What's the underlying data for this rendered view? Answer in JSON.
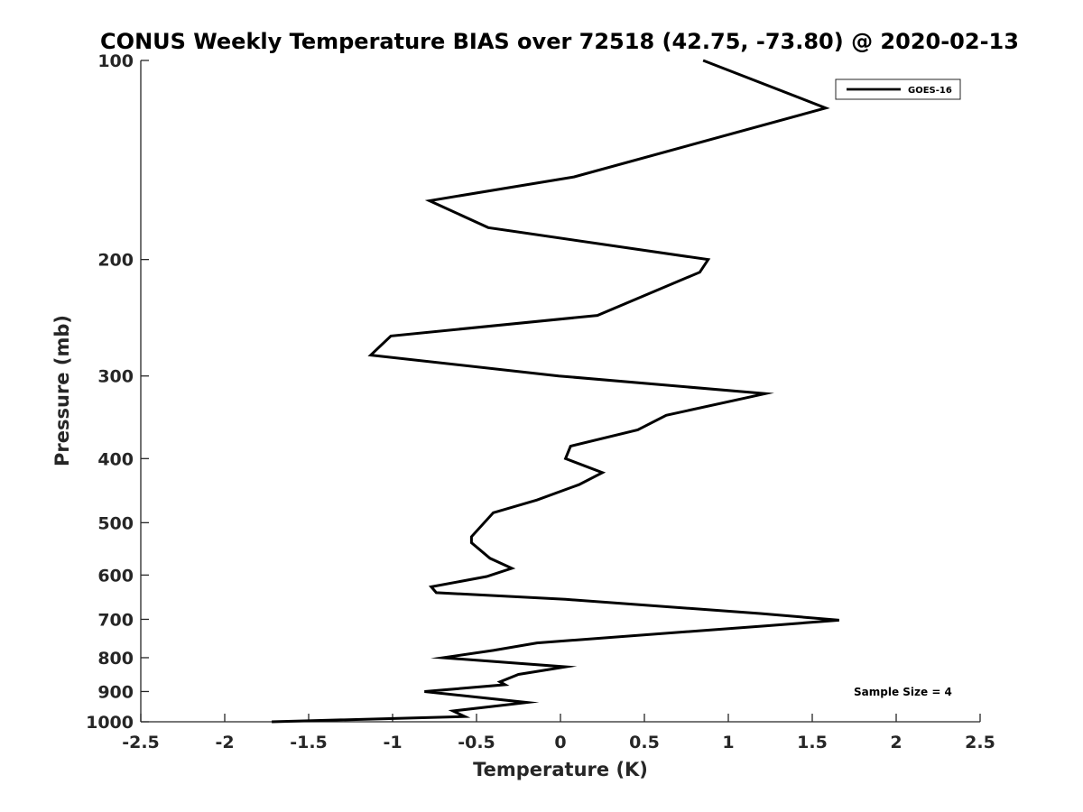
{
  "chart_data": {
    "type": "line",
    "title": "CONUS Weekly Temperature BIAS over 72518 (42.75, -73.80) @ 2020-02-13",
    "xlabel": "Temperature (K)",
    "ylabel": "Pressure (mb)",
    "xlim": [
      -2.5,
      2.5
    ],
    "ylim": [
      100,
      1000
    ],
    "y_scale": "log",
    "y_reversed": true,
    "grid": false,
    "legend_position": "top-right",
    "x_ticks": [
      -2.5,
      -2,
      -1.5,
      -1,
      -0.5,
      0,
      0.5,
      1,
      1.5,
      2,
      2.5
    ],
    "x_tick_labels": [
      "-2.5",
      "-2",
      "-1.5",
      "-1",
      "-0.5",
      "0",
      "0.5",
      "1",
      "1.5",
      "2",
      "2.5"
    ],
    "y_ticks": [
      100,
      200,
      300,
      400,
      500,
      600,
      700,
      800,
      900,
      1000
    ],
    "y_tick_labels": [
      "100",
      "200",
      "300",
      "400",
      "500",
      "600",
      "700",
      "800",
      "900",
      "1000"
    ],
    "series": [
      {
        "name": "GOES-16",
        "color": "#000000",
        "points": [
          {
            "t": 0.85,
            "p": 100
          },
          {
            "t": 1.58,
            "p": 118
          },
          {
            "t": 0.08,
            "p": 150
          },
          {
            "t": -0.78,
            "p": 163
          },
          {
            "t": -0.43,
            "p": 179
          },
          {
            "t": 0.88,
            "p": 200
          },
          {
            "t": 0.83,
            "p": 209
          },
          {
            "t": 0.22,
            "p": 243
          },
          {
            "t": -1.01,
            "p": 261
          },
          {
            "t": -1.13,
            "p": 279
          },
          {
            "t": -0.01,
            "p": 300
          },
          {
            "t": 1.22,
            "p": 319
          },
          {
            "t": 0.63,
            "p": 344
          },
          {
            "t": 0.46,
            "p": 362
          },
          {
            "t": 0.06,
            "p": 383
          },
          {
            "t": 0.03,
            "p": 400
          },
          {
            "t": 0.25,
            "p": 420
          },
          {
            "t": 0.11,
            "p": 438
          },
          {
            "t": -0.14,
            "p": 462
          },
          {
            "t": -0.4,
            "p": 483
          },
          {
            "t": -0.53,
            "p": 525
          },
          {
            "t": -0.53,
            "p": 536
          },
          {
            "t": -0.42,
            "p": 566
          },
          {
            "t": -0.29,
            "p": 586
          },
          {
            "t": -0.44,
            "p": 603
          },
          {
            "t": -0.77,
            "p": 625
          },
          {
            "t": -0.74,
            "p": 638
          },
          {
            "t": 0.03,
            "p": 653
          },
          {
            "t": 1.19,
            "p": 686
          },
          {
            "t": 1.66,
            "p": 702
          },
          {
            "t": 1.22,
            "p": 716
          },
          {
            "t": -0.14,
            "p": 760
          },
          {
            "t": -0.4,
            "p": 780
          },
          {
            "t": -0.7,
            "p": 800
          },
          {
            "t": 0.03,
            "p": 826
          },
          {
            "t": -0.25,
            "p": 848
          },
          {
            "t": -0.36,
            "p": 870
          },
          {
            "t": -0.33,
            "p": 879
          },
          {
            "t": -0.81,
            "p": 900
          },
          {
            "t": -0.2,
            "p": 935
          },
          {
            "t": -0.64,
            "p": 963
          },
          {
            "t": -0.57,
            "p": 982
          },
          {
            "t": -1.72,
            "p": 1000
          }
        ]
      }
    ],
    "annotations": [
      "Sample Size = 4"
    ]
  }
}
